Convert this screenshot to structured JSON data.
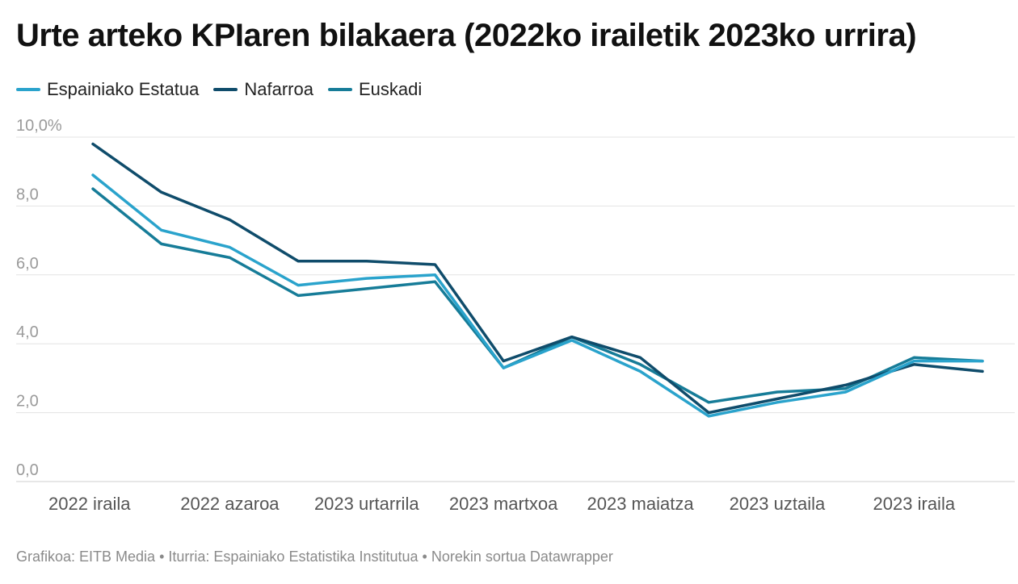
{
  "title": "Urte arteko KPIaren bilakaera (2022ko irailetik 2023ko urrira)",
  "footer": "Grafikoa: EITB Media • Iturria: Espainiako Estatistika Institutua • Norekin sortua Datawrapper",
  "chart_data": {
    "type": "line",
    "title": "Urte arteko KPIaren bilakaera (2022ko irailetik 2023ko urrira)",
    "xlabel": "",
    "ylabel": "",
    "x": [
      "2022-09",
      "2022-10",
      "2022-11",
      "2022-12",
      "2023-01",
      "2023-02",
      "2023-03",
      "2023-04",
      "2023-05",
      "2023-06",
      "2023-07",
      "2023-08",
      "2023-09",
      "2023-10"
    ],
    "x_tick_labels": [
      {
        "x": "2022-09",
        "label": "2022 iraila"
      },
      {
        "x": "2022-11",
        "label": "2022 azaroa"
      },
      {
        "x": "2023-01",
        "label": "2023 urtarrila"
      },
      {
        "x": "2023-03",
        "label": "2023 martxoa"
      },
      {
        "x": "2023-05",
        "label": "2023 maiatza"
      },
      {
        "x": "2023-07",
        "label": "2023 uztaila"
      },
      {
        "x": "2023-09",
        "label": "2023 iraila"
      }
    ],
    "y_ticks": [
      {
        "value": 0,
        "label": "0,0"
      },
      {
        "value": 2,
        "label": "2,0"
      },
      {
        "value": 4,
        "label": "4,0"
      },
      {
        "value": 6,
        "label": "6,0"
      },
      {
        "value": 8,
        "label": "8,0"
      },
      {
        "value": 10,
        "label": "10,0%"
      }
    ],
    "ylim": [
      0,
      10
    ],
    "grid": "horizontal",
    "legend_position": "top-left",
    "series": [
      {
        "name": "Espainiako Estatua",
        "color": "#2aa3cc",
        "values": [
          8.9,
          7.3,
          6.8,
          5.7,
          5.9,
          6.0,
          3.3,
          4.1,
          3.2,
          1.9,
          2.3,
          2.6,
          3.5,
          3.5
        ]
      },
      {
        "name": "Nafarroa",
        "color": "#0f4c6b",
        "values": [
          9.8,
          8.4,
          7.6,
          6.4,
          6.4,
          6.3,
          3.5,
          4.2,
          3.6,
          2.0,
          2.4,
          2.8,
          3.4,
          3.2
        ]
      },
      {
        "name": "Euskadi",
        "color": "#167c98",
        "values": [
          8.5,
          6.9,
          6.5,
          5.4,
          5.6,
          5.8,
          3.3,
          4.2,
          3.4,
          2.3,
          2.6,
          2.7,
          3.6,
          3.5
        ]
      }
    ]
  }
}
